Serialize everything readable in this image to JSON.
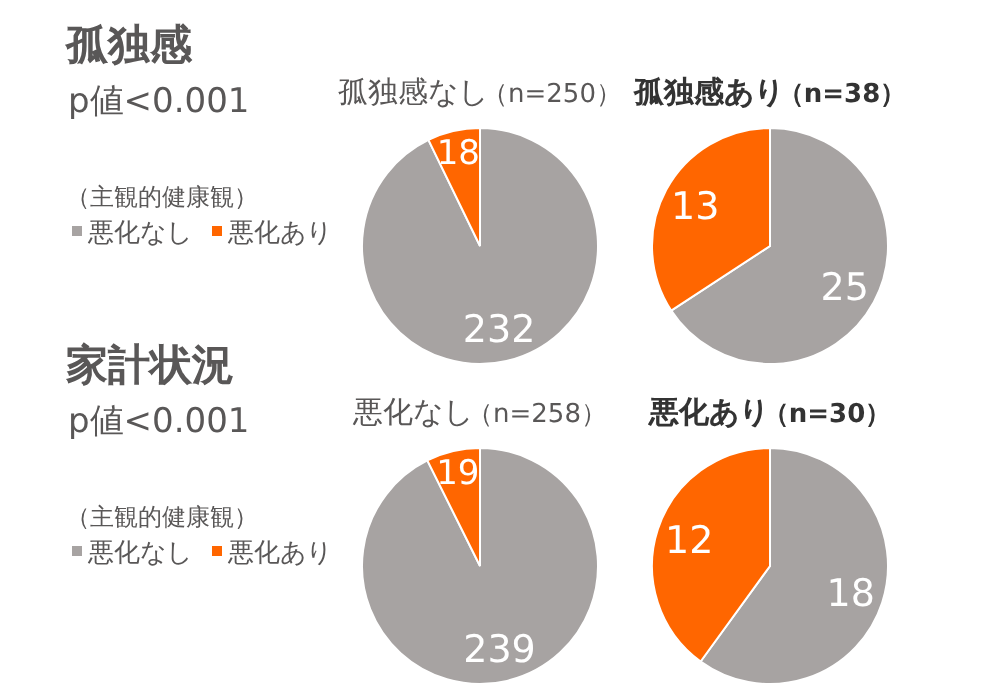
{
  "chart_data": [
    {
      "type": "pie",
      "title": "孤独感なし（n=250）",
      "annotations": [
        "孤独感",
        "p値<0.001"
      ],
      "legend_title": "（主観的健康観）",
      "legend": "left",
      "categories": [
        "悪化なし",
        "悪化あり"
      ],
      "values": [
        232,
        18
      ],
      "colors": [
        "#a7a3a2",
        "#ff6600"
      ],
      "data_labels": true
    },
    {
      "type": "pie",
      "title": "孤独感あり（n=38）",
      "categories": [
        null,
        null
      ],
      "values": [
        25,
        13
      ],
      "colors": [
        "#a7a3a2",
        "#ff6600"
      ],
      "data_labels": true
    },
    {
      "type": "pie",
      "title": "悪化なし（n=258）",
      "annotations": [
        "家計状況",
        "p値<0.001"
      ],
      "legend_title": "（主観的健康観）",
      "legend": "left",
      "categories": [
        "悪化なし",
        "悪化あり"
      ],
      "values": [
        239,
        19
      ],
      "colors": [
        "#a7a3a2",
        "#ff6600"
      ],
      "data_labels": true
    },
    {
      "type": "pie",
      "title": "悪化あり（n=30）",
      "categories": [
        null,
        null
      ],
      "values": [
        18,
        12
      ],
      "colors": [
        "#a7a3a2",
        "#ff6600"
      ],
      "data_labels": true
    }
  ]
}
